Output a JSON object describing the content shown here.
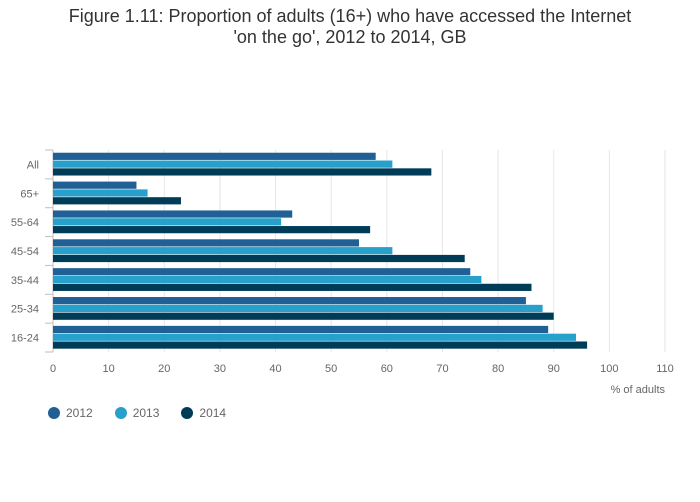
{
  "title_line1": "Figure 1.11: Proportion of adults (16+) who have accessed the Internet",
  "title_line2": "&#x27;on the go&#x27;, 2012 to 2014, GB",
  "colors": {
    "s2012": "#206095",
    "s2013": "#27a0cc",
    "s2014": "#003c57",
    "grid": "#e6e6e6",
    "axis": "#bfbfbf"
  },
  "chart_data": {
    "type": "bar",
    "orientation": "horizontal",
    "title": "Figure 1.11: Proportion of adults (16+) who have accessed the Internet &#x27;on the go&#x27;, 2012 to 2014, GB",
    "xlabel": "% of adults",
    "ylabel": "",
    "xlim": [
      0,
      110
    ],
    "xticks": [
      0,
      10,
      20,
      30,
      40,
      50,
      60,
      70,
      80,
      90,
      100,
      110
    ],
    "categories": [
      "All",
      "65+",
      "55-64",
      "45-54",
      "35-44",
      "25-34",
      "16-24"
    ],
    "series": [
      {
        "name": "2012",
        "values": [
          58,
          15,
          43,
          55,
          75,
          85,
          89
        ]
      },
      {
        "name": "2013",
        "values": [
          61,
          17,
          41,
          61,
          77,
          88,
          94
        ]
      },
      {
        "name": "2014",
        "values": [
          68,
          23,
          57,
          74,
          86,
          90,
          96
        ]
      }
    ],
    "legend_position": "bottom-left",
    "grid": true
  }
}
